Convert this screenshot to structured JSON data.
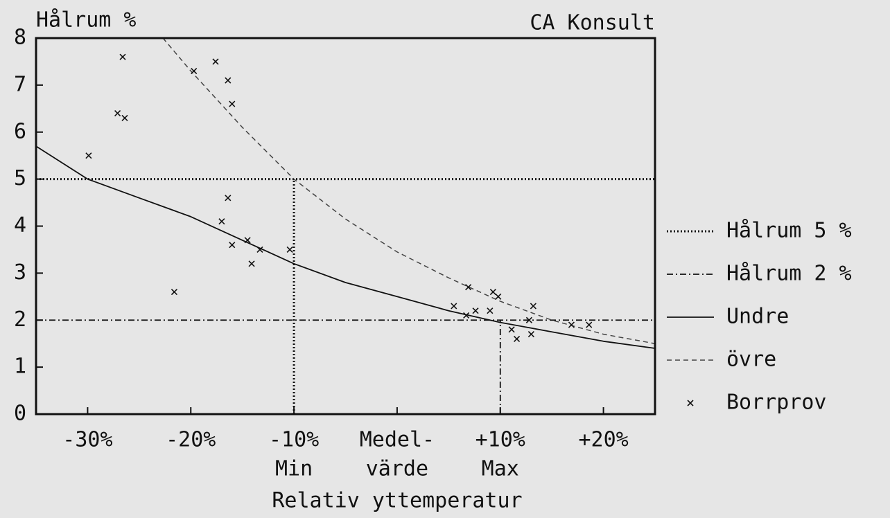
{
  "chart_data": {
    "type": "scatter",
    "title": "CA Konsult",
    "ylabel": "Hålrum %",
    "xlabel": "Relativ yttemperatur",
    "xlim": [
      -35,
      25
    ],
    "ylim": [
      0,
      8
    ],
    "yticks": [
      0,
      1,
      2,
      3,
      4,
      5,
      6,
      7,
      8
    ],
    "xticks": [
      {
        "value": -30,
        "label": "-30%"
      },
      {
        "value": -20,
        "label": "-20%"
      },
      {
        "value": -10,
        "label": "-10%",
        "sublabel": "Min"
      },
      {
        "value": 0,
        "label": "Medel-",
        "sublabel": "värde"
      },
      {
        "value": 10,
        "label": "+10%",
        "sublabel": "Max"
      },
      {
        "value": 20,
        "label": "+20%"
      }
    ],
    "references": [
      {
        "name": "Hålrum 5 %",
        "style": "dotted",
        "value": 5,
        "x": -10
      },
      {
        "name": "Hålrum 2 %",
        "style": "dashdot",
        "value": 2,
        "x": 10
      }
    ],
    "series": [
      {
        "name": "Undre",
        "style": "solid",
        "color": "#111111",
        "x": [
          -35,
          -30,
          -25,
          -20,
          -15,
          -10,
          -5,
          0,
          5,
          10,
          15,
          20,
          25
        ],
        "values": [
          5.7,
          5.0,
          4.6,
          4.2,
          3.7,
          3.2,
          2.8,
          2.5,
          2.2,
          1.95,
          1.75,
          1.55,
          1.4
        ]
      },
      {
        "name": "övre",
        "style": "dashed",
        "color": "#444444",
        "x": [
          -22.7,
          -20,
          -15,
          -10,
          -5,
          0,
          5,
          10,
          15,
          20,
          25
        ],
        "values": [
          8,
          7.3,
          6.1,
          5,
          4.15,
          3.45,
          2.9,
          2.4,
          2.0,
          1.7,
          1.5
        ]
      },
      {
        "name": "Borrprov",
        "style": "markers",
        "color": "#111111",
        "x": [
          -29.9,
          -26.6,
          -27.1,
          -26.4,
          -19.7,
          -17.6,
          -16.4,
          -16.0,
          -16.4,
          -17.0,
          -16.0,
          -14.5,
          -13.3,
          -14.1,
          -21.6,
          -10.4,
          5.5,
          6.7,
          7.6,
          6.9,
          9.0,
          9.3,
          9.8,
          11.1,
          11.6,
          12.8,
          13.0,
          13.2,
          16.9,
          18.6
        ],
        "values": [
          5.5,
          7.6,
          6.4,
          6.3,
          7.3,
          7.5,
          7.1,
          6.6,
          4.6,
          4.1,
          3.6,
          3.7,
          3.5,
          3.2,
          2.6,
          3.5,
          2.3,
          2.1,
          2.2,
          2.7,
          2.2,
          2.6,
          2.5,
          1.8,
          1.6,
          2.0,
          1.7,
          2.3,
          1.9,
          1.9
        ]
      }
    ]
  }
}
